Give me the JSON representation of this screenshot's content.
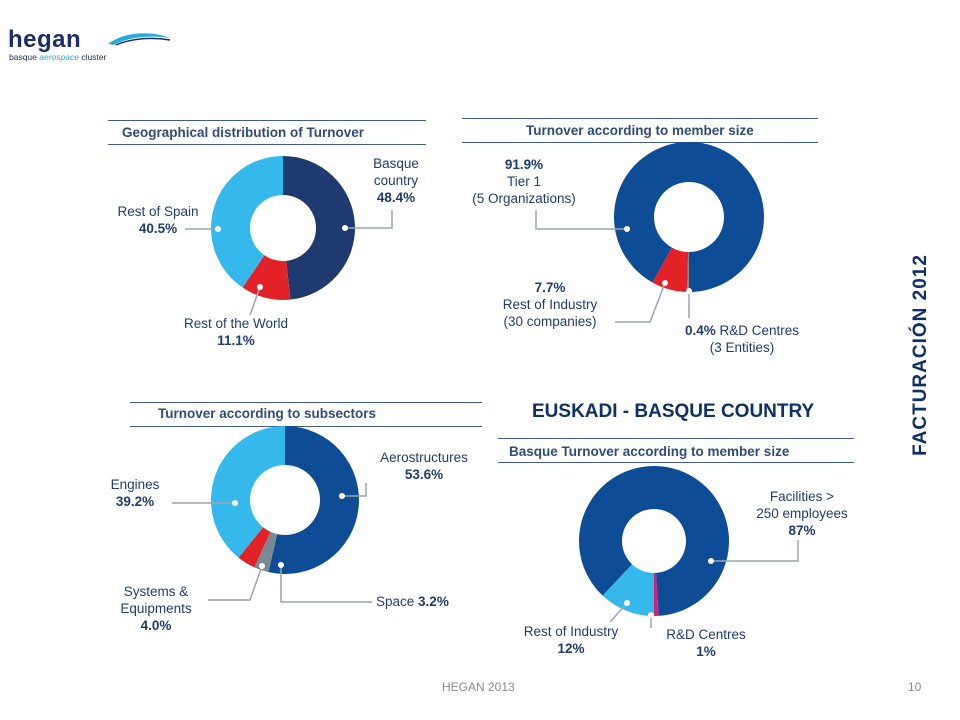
{
  "logo": {
    "word": "hegan",
    "tag_part1": "basque ",
    "tag_part2": "aerospace",
    "tag_part3": " cluster"
  },
  "side_title": "FACTURACIÓN 2012",
  "euskadi_title": "EUSKADI - BASQUE COUNTRY",
  "footer": {
    "source": "HEGAN 2013",
    "page": "10"
  },
  "colors": {
    "dark_navy": "#1f3a6e",
    "navy": "#0e4c96",
    "light_blue": "#35b8eb",
    "red": "#e32227",
    "gray": "#7a8a94",
    "magenta": "#d6207e",
    "title_text": "#2f4b7c"
  },
  "chart_data": [
    {
      "type": "pie",
      "title": "Geographical distribution of Turnover",
      "slices": [
        {
          "name_lines": [
            "Basque",
            "country"
          ],
          "value": 48.4,
          "label": "48.4%",
          "color": "#1f3a6e"
        },
        {
          "name_lines": [
            "Rest of the World"
          ],
          "value": 11.1,
          "label": "11.1%",
          "color": "#e32227"
        },
        {
          "name_lines": [
            "Rest of Spain"
          ],
          "value": 40.5,
          "label": "40.5%",
          "color": "#35b8eb"
        }
      ]
    },
    {
      "type": "pie",
      "title": "Turnover according to member size",
      "slices": [
        {
          "name_lines": [
            "R&D Centres",
            "(3 Entities)"
          ],
          "value": 0.4,
          "label": "0.4%",
          "color": "#7a8a94"
        },
        {
          "name_lines": [
            "Rest of Industry",
            "(30 companies)"
          ],
          "value": 7.7,
          "label": "7.7%",
          "color": "#e32227"
        },
        {
          "name_lines": [
            "Tier 1",
            "(5 Organizations)"
          ],
          "value": 91.9,
          "label": "91.9%",
          "color": "#0e4c96"
        }
      ]
    },
    {
      "type": "pie",
      "title": "Turnover according to subsectors",
      "slices": [
        {
          "name_lines": [
            "Aerostructures"
          ],
          "value": 53.6,
          "label": "53.6%",
          "color": "#0e4c96"
        },
        {
          "name_lines": [
            "Space"
          ],
          "value": 3.2,
          "label": "3.2%",
          "color": "#7a8a94"
        },
        {
          "name_lines": [
            "Systems &",
            "Equipments"
          ],
          "value": 4.0,
          "label": "4.0%",
          "color": "#e32227"
        },
        {
          "name_lines": [
            "Engines"
          ],
          "value": 39.2,
          "label": "39.2%",
          "color": "#35b8eb"
        }
      ]
    },
    {
      "type": "pie",
      "title": "Basque Turnover according to member size",
      "slices": [
        {
          "name_lines": [
            "R&D Centres"
          ],
          "value": 1,
          "label": "1%",
          "color": "#d6207e"
        },
        {
          "name_lines": [
            "Facilities >",
            "250 employees"
          ],
          "value": 87,
          "label": "87%",
          "color": "#0e4c96"
        },
        {
          "name_lines": [
            "Rest of Industry"
          ],
          "value": 12,
          "label": "12%",
          "color": "#35b8eb"
        }
      ]
    }
  ]
}
